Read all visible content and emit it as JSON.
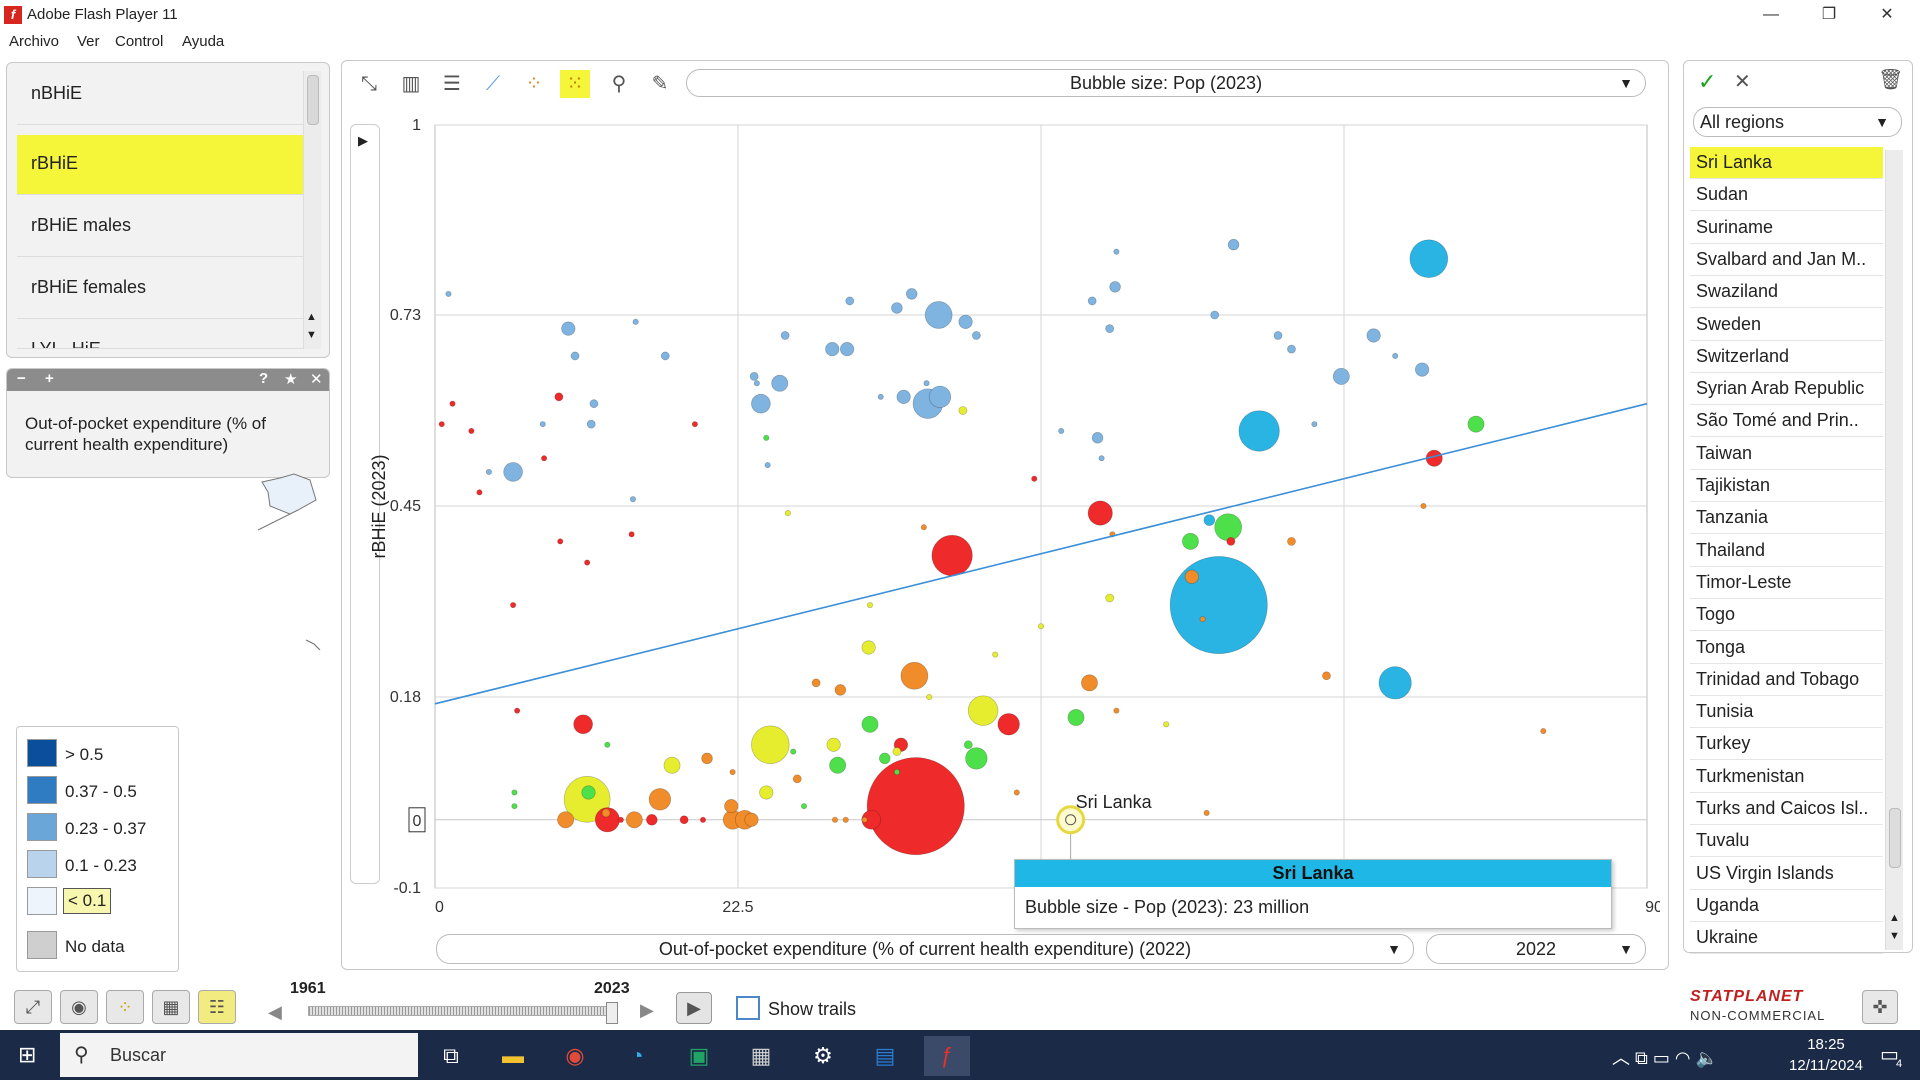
{
  "window": {
    "title": "Adobe Flash Player 11",
    "logo_letter": "f",
    "controls": [
      "—",
      "❐",
      "✕"
    ]
  },
  "menu": [
    "Archivo",
    "Ver",
    "Control",
    "Ayuda"
  ],
  "indicators": {
    "items": [
      "nBHiE",
      "rBHiE",
      "rBHiE males",
      "rBHiE females",
      "LYL_HiE"
    ],
    "selected_index": 1,
    "description_buttons": [
      "−",
      "+",
      "?",
      "★",
      "✕"
    ],
    "description": "Out-of-pocket expenditure (% of current health expenditure)"
  },
  "legend": [
    {
      "label": "> 0.5",
      "color": "#0b4f9c"
    },
    {
      "label": "0.37 - 0.5",
      "color": "#2f7cc2"
    },
    {
      "label": "0.23 - 0.37",
      "color": "#6aa6d8"
    },
    {
      "label": "0.1 - 0.23",
      "color": "#b9d3ec"
    },
    {
      "label": "< 0.1",
      "color": "#eef4fb"
    },
    {
      "label": "No data",
      "color": "#cfcfcf"
    }
  ],
  "toolbar_icons": [
    "fullscreen-icon",
    "bar-chart-icon",
    "horizontal-bar-icon",
    "line-chart-icon",
    "scatter-icon",
    "bubble-chart-icon",
    "zoom-icon",
    "settings-wrench-icon"
  ],
  "bubble_size_dropdown": "Bubble size: Pop (2023)",
  "play_button": "▶",
  "x_dropdown": "Out-of-pocket expenditure (% of current health expenditure)  (2022)",
  "year_dropdown": "2022",
  "chart_data": {
    "type": "scatter",
    "ylabel": "rBHiE (2023)",
    "xlabel": "Out-of-pocket expenditure (% of current health expenditure)  (2022)",
    "xlim": [
      0,
      90
    ],
    "ylim": [
      -0.1,
      1
    ],
    "x_ticks": [
      "0",
      "22.5",
      "90"
    ],
    "y_ticks": [
      "1",
      "0.73",
      "0.45",
      "0.18",
      "-0.1"
    ],
    "y_zero_label": "0",
    "trendline": {
      "x": [
        0,
        90
      ],
      "y": [
        0.17,
        0.6
      ],
      "color": "#3a8fd8"
    },
    "highlight": {
      "label": "Sri Lanka",
      "x": 47.2,
      "y": 0.0
    },
    "colors": {
      "b": "#7fb3e0",
      "c": "#2ab4e4",
      "r": "#ee2a2a",
      "o": "#f08c2a",
      "y": "#e6ec2e",
      "g": "#4ee04a"
    },
    "bubbles": [
      [
        1,
        0.76,
        2,
        "b"
      ],
      [
        9.9,
        0.71,
        5,
        "b"
      ],
      [
        10.4,
        0.67,
        3,
        "b"
      ],
      [
        14.9,
        0.72,
        2,
        "b"
      ],
      [
        17.1,
        0.67,
        3,
        "b"
      ],
      [
        11.8,
        0.6,
        3,
        "b"
      ],
      [
        11.6,
        0.57,
        3,
        "b"
      ],
      [
        5.8,
        0.5,
        7,
        "b"
      ],
      [
        4,
        0.5,
        2,
        "b"
      ],
      [
        8,
        0.57,
        2,
        "b"
      ],
      [
        14.7,
        0.46,
        2,
        "b"
      ],
      [
        23.7,
        0.64,
        3,
        "b"
      ],
      [
        25.6,
        0.63,
        6,
        "b"
      ],
      [
        26,
        0.7,
        3,
        "b"
      ],
      [
        24.2,
        0.6,
        7,
        "b"
      ],
      [
        29.5,
        0.68,
        5,
        "b"
      ],
      [
        30.6,
        0.68,
        5,
        "b"
      ],
      [
        30.8,
        0.75,
        3,
        "b"
      ],
      [
        34.3,
        0.74,
        4,
        "b"
      ],
      [
        35.4,
        0.76,
        4,
        "b"
      ],
      [
        37.4,
        0.73,
        10,
        "b"
      ],
      [
        39.4,
        0.72,
        5,
        "b"
      ],
      [
        40.2,
        0.7,
        3,
        "b"
      ],
      [
        34.8,
        0.61,
        5,
        "b"
      ],
      [
        36.6,
        0.6,
        11,
        "b"
      ],
      [
        37.5,
        0.61,
        8,
        "b"
      ],
      [
        36.5,
        0.63,
        2,
        "b"
      ],
      [
        24.7,
        0.51,
        2,
        "b"
      ],
      [
        23.9,
        0.63,
        2,
        "b"
      ],
      [
        33.1,
        0.61,
        2,
        "b"
      ],
      [
        48.8,
        0.75,
        3,
        "b"
      ],
      [
        50.5,
        0.77,
        4,
        "b"
      ],
      [
        50.6,
        0.82,
        2,
        "b"
      ],
      [
        50.1,
        0.71,
        3,
        "b"
      ],
      [
        49.5,
        0.52,
        2,
        "b"
      ],
      [
        49.2,
        0.55,
        4,
        "b"
      ],
      [
        46.5,
        0.56,
        2,
        "b"
      ],
      [
        57.9,
        0.73,
        3,
        "b"
      ],
      [
        59.3,
        0.83,
        4,
        "b"
      ],
      [
        62.6,
        0.7,
        3,
        "b"
      ],
      [
        63.6,
        0.68,
        3,
        "b"
      ],
      [
        65.3,
        0.57,
        2,
        "b"
      ],
      [
        67.3,
        0.64,
        6,
        "b"
      ],
      [
        69.7,
        0.7,
        5,
        "b"
      ],
      [
        71.3,
        0.67,
        2,
        "b"
      ],
      [
        73.3,
        0.65,
        5,
        "b"
      ],
      [
        61.2,
        0.56,
        15,
        "c"
      ],
      [
        73.8,
        0.81,
        14,
        "c"
      ],
      [
        57.5,
        0.43,
        4,
        "c"
      ],
      [
        58.2,
        0.31,
        36,
        "c"
      ],
      [
        71.3,
        0.2,
        12,
        "c"
      ],
      [
        0.5,
        0.57,
        2,
        "r"
      ],
      [
        1.3,
        0.6,
        2,
        "r"
      ],
      [
        2.7,
        0.56,
        2,
        "r"
      ],
      [
        3.3,
        0.47,
        2,
        "r"
      ],
      [
        8.1,
        0.52,
        2,
        "r"
      ],
      [
        9.2,
        0.61,
        3,
        "r"
      ],
      [
        9.3,
        0.4,
        2,
        "r"
      ],
      [
        11.3,
        0.37,
        2,
        "r"
      ],
      [
        14.6,
        0.41,
        2,
        "r"
      ],
      [
        19.3,
        0.57,
        2,
        "r"
      ],
      [
        5.8,
        0.31,
        2,
        "r"
      ],
      [
        6.1,
        0.16,
        2,
        "r"
      ],
      [
        11,
        0.14,
        7,
        "r"
      ],
      [
        38.4,
        0.38,
        15,
        "r"
      ],
      [
        44.5,
        0.49,
        2,
        "r"
      ],
      [
        49.4,
        0.44,
        9,
        "r"
      ],
      [
        59.1,
        0.4,
        3,
        "r"
      ],
      [
        74.2,
        0.52,
        6,
        "r"
      ],
      [
        42.6,
        0.14,
        8,
        "r"
      ],
      [
        34.6,
        0.11,
        5,
        "r"
      ],
      [
        35.7,
        0.02,
        36,
        "r"
      ],
      [
        32.4,
        0,
        7,
        "r"
      ],
      [
        12.8,
        0,
        9,
        "r"
      ],
      [
        16.1,
        0,
        4,
        "r"
      ],
      [
        18.5,
        0,
        3,
        "r"
      ],
      [
        19.9,
        0.0,
        2,
        "r"
      ],
      [
        13.8,
        0.0,
        2,
        "r"
      ],
      [
        36.3,
        0.42,
        2,
        "o"
      ],
      [
        35.6,
        0.21,
        10,
        "o"
      ],
      [
        30.1,
        0.19,
        4,
        "o"
      ],
      [
        28.3,
        0.2,
        3,
        "o"
      ],
      [
        48.6,
        0.2,
        6,
        "o"
      ],
      [
        50.3,
        0.41,
        2,
        "o"
      ],
      [
        50.6,
        0.16,
        2,
        "o"
      ],
      [
        63.6,
        0.4,
        3,
        "o"
      ],
      [
        66.2,
        0.21,
        3,
        "o"
      ],
      [
        82.3,
        0.13,
        2,
        "o"
      ],
      [
        73.4,
        0.45,
        2,
        "o"
      ],
      [
        56.2,
        0.35,
        5,
        "o"
      ],
      [
        57,
        0.29,
        2,
        "o"
      ],
      [
        20.2,
        0.09,
        4,
        "o"
      ],
      [
        22.1,
        0.07,
        2,
        "o"
      ],
      [
        26.9,
        0.06,
        3,
        "o"
      ],
      [
        16.7,
        0.03,
        8,
        "o"
      ],
      [
        22,
        0.02,
        5,
        "o"
      ],
      [
        22.1,
        0,
        7,
        "o"
      ],
      [
        23,
        0,
        7,
        "o"
      ],
      [
        23.5,
        0,
        5,
        "o"
      ],
      [
        14.8,
        0,
        6,
        "o"
      ],
      [
        9.7,
        0,
        6,
        "o"
      ],
      [
        12.7,
        0.01,
        3,
        "o"
      ],
      [
        29.7,
        0,
        2,
        "o"
      ],
      [
        30.5,
        0,
        2,
        "o"
      ],
      [
        31.9,
        0,
        2,
        "o"
      ],
      [
        43.2,
        0.04,
        2,
        "o"
      ],
      [
        57.3,
        0.01,
        2,
        "o"
      ],
      [
        17.6,
        0.08,
        6,
        "y"
      ],
      [
        11.3,
        0.03,
        17,
        "y"
      ],
      [
        24.9,
        0.11,
        14,
        "y"
      ],
      [
        24.6,
        0.04,
        5,
        "y"
      ],
      [
        26.2,
        0.44,
        2,
        "y"
      ],
      [
        29.6,
        0.11,
        5,
        "y"
      ],
      [
        32.2,
        0.25,
        5,
        "y"
      ],
      [
        32.3,
        0.31,
        2,
        "y"
      ],
      [
        34.3,
        0.1,
        3,
        "y"
      ],
      [
        36.7,
        0.18,
        2,
        "y"
      ],
      [
        40.7,
        0.16,
        11,
        "y"
      ],
      [
        41.6,
        0.24,
        2,
        "y"
      ],
      [
        39.2,
        0.59,
        3,
        "y"
      ],
      [
        50.1,
        0.32,
        3,
        "y"
      ],
      [
        54.3,
        0.14,
        2,
        "y"
      ],
      [
        45,
        0.28,
        2,
        "y"
      ],
      [
        29.9,
        0.08,
        6,
        "g"
      ],
      [
        32.3,
        0.14,
        6,
        "g"
      ],
      [
        33.4,
        0.09,
        4,
        "g"
      ],
      [
        40.2,
        0.09,
        8,
        "g"
      ],
      [
        39.6,
        0.11,
        3,
        "g"
      ],
      [
        47.6,
        0.15,
        6,
        "g"
      ],
      [
        58.9,
        0.42,
        10,
        "g"
      ],
      [
        56.1,
        0.4,
        6,
        "g"
      ],
      [
        77.3,
        0.57,
        6,
        "g"
      ],
      [
        26.6,
        0.1,
        2,
        "g"
      ],
      [
        27.4,
        0.02,
        2,
        "g"
      ],
      [
        11.4,
        0.04,
        5,
        "g"
      ],
      [
        12.8,
        0.11,
        2,
        "g"
      ],
      [
        5.9,
        0.02,
        2,
        "g"
      ],
      [
        5.9,
        0.04,
        2,
        "g"
      ],
      [
        24.6,
        0.55,
        2,
        "g"
      ],
      [
        34.3,
        0.07,
        2,
        "g"
      ]
    ]
  },
  "tooltip": {
    "title": "Sri Lanka",
    "body": "Bubble size - Pop (2023): 23 million"
  },
  "regions": {
    "dropdown": "All regions",
    "items": [
      "Sri Lanka",
      "Sudan",
      "Suriname",
      "Svalbard and Jan M..",
      "Swaziland",
      "Sweden",
      "Switzerland",
      "Syrian Arab Republic",
      "São Tomé and Prin..",
      "Taiwan",
      "Tajikistan",
      "Tanzania",
      "Thailand",
      "Timor-Leste",
      "Togo",
      "Tonga",
      "Trinidad and Tobago",
      "Tunisia",
      "Turkey",
      "Turkmenistan",
      "Turks and Caicos Isl..",
      "Tuvalu",
      "US Virgin Islands",
      "Uganda",
      "Ukraine"
    ],
    "selected_index": 0
  },
  "timeline": {
    "start": "1961",
    "end": "2023",
    "show_trails": "Show trails"
  },
  "brand": {
    "line1": "STATPLANET",
    "line2": "NON-COMMERCIAL"
  },
  "taskbar": {
    "search": "Buscar",
    "time": "18:25",
    "date": "12/11/2024",
    "notifications": "4"
  }
}
